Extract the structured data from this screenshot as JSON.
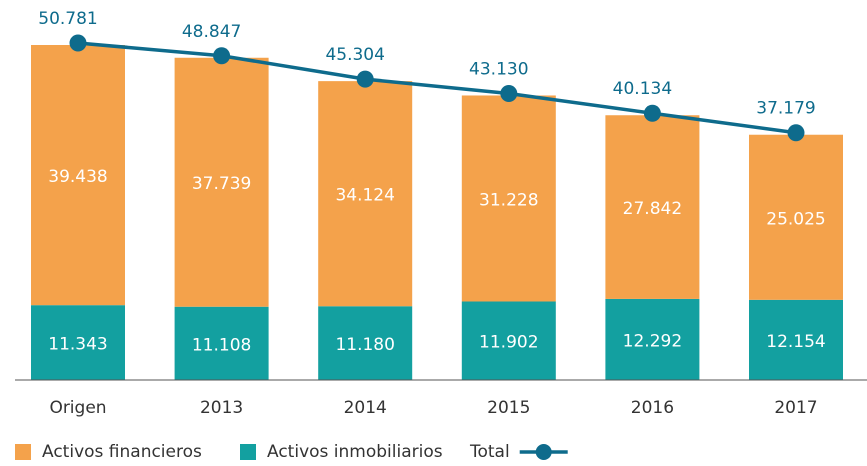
{
  "chart_data": {
    "type": "stacked-bar-line",
    "categories": [
      "Origen",
      "2013",
      "2014",
      "2015",
      "2016",
      "2017"
    ],
    "series": [
      {
        "name": "Activos financieros",
        "color": "#f4a24b",
        "values": [
          39438,
          37739,
          34124,
          31228,
          27842,
          25025
        ],
        "value_labels": [
          "39.438",
          "37.739",
          "34.124",
          "31.228",
          "27.842",
          "25.025"
        ]
      },
      {
        "name": "Activos inmobiliarios",
        "color": "#13a0a0",
        "values": [
          11343,
          11108,
          11180,
          11902,
          12292,
          12154
        ],
        "value_labels": [
          "11.343",
          "11.108",
          "11.180",
          "11.902",
          "12.292",
          "12.154"
        ]
      },
      {
        "name": "Total",
        "type": "line",
        "color": "#0e6b8c",
        "values": [
          50781,
          48847,
          45304,
          43130,
          40134,
          37179
        ],
        "value_labels": [
          "50.781",
          "48.847",
          "45.304",
          "43.130",
          "40.134",
          "37.179"
        ]
      }
    ],
    "legend": "bottom-left"
  }
}
